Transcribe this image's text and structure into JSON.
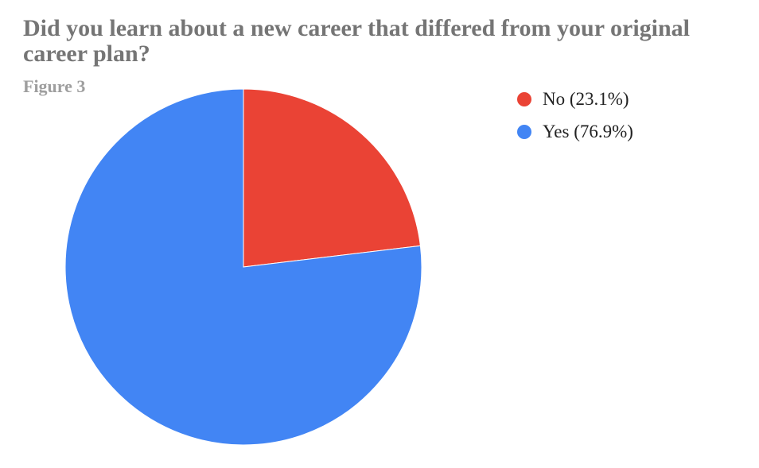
{
  "chart_data": {
    "type": "pie",
    "title": "Did you learn about a new career that differed from your original career plan?",
    "subtitle": "Figure 3",
    "legend_position": "right",
    "slices": [
      {
        "label": "No",
        "value": 23.1,
        "legend": "No (23.1%)",
        "color": "#EA4335"
      },
      {
        "label": "Yes",
        "value": 76.9,
        "legend": "Yes (76.9%)",
        "color": "#4285F4"
      }
    ]
  }
}
